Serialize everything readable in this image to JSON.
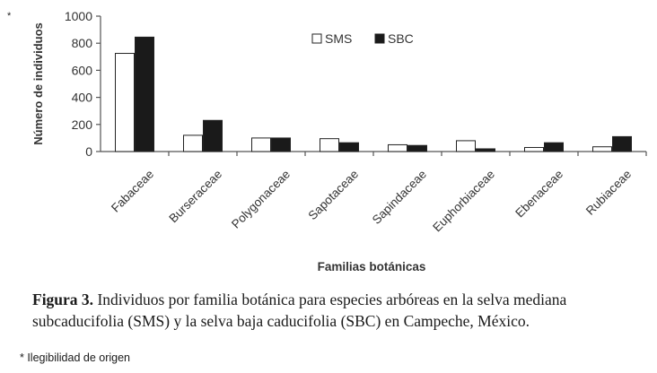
{
  "asterisk": "*",
  "chart_data": {
    "type": "bar",
    "title": "",
    "xlabel": "Familias botánicas",
    "ylabel": "Número de individuos",
    "ylim": [
      0,
      1000
    ],
    "yticks": [
      0,
      200,
      400,
      600,
      800,
      1000
    ],
    "grid": false,
    "legend_position": "top-center",
    "categories": [
      "Fabaceae",
      "Burseraceae",
      "Polygonaceae",
      "Sapotaceae",
      "Sapindaceae",
      "Euphorbiaceae",
      "Ebenaceae",
      "Rubiaceae"
    ],
    "series": [
      {
        "name": "SMS",
        "color": "#ffffff",
        "values": [
          725,
          120,
          100,
          95,
          50,
          80,
          30,
          35
        ]
      },
      {
        "name": "SBC",
        "color": "#1a1a1a",
        "values": [
          845,
          230,
          100,
          65,
          45,
          20,
          65,
          110
        ]
      }
    ]
  },
  "caption": {
    "label": "Figura 3.",
    "text": " Individuos por familia botánica para especies arbóreas en la selva mediana subcaducifolia (SMS) y la selva baja caducifolia (SBC) en Campeche, México."
  },
  "footnote": "* Ilegibilidad de origen"
}
